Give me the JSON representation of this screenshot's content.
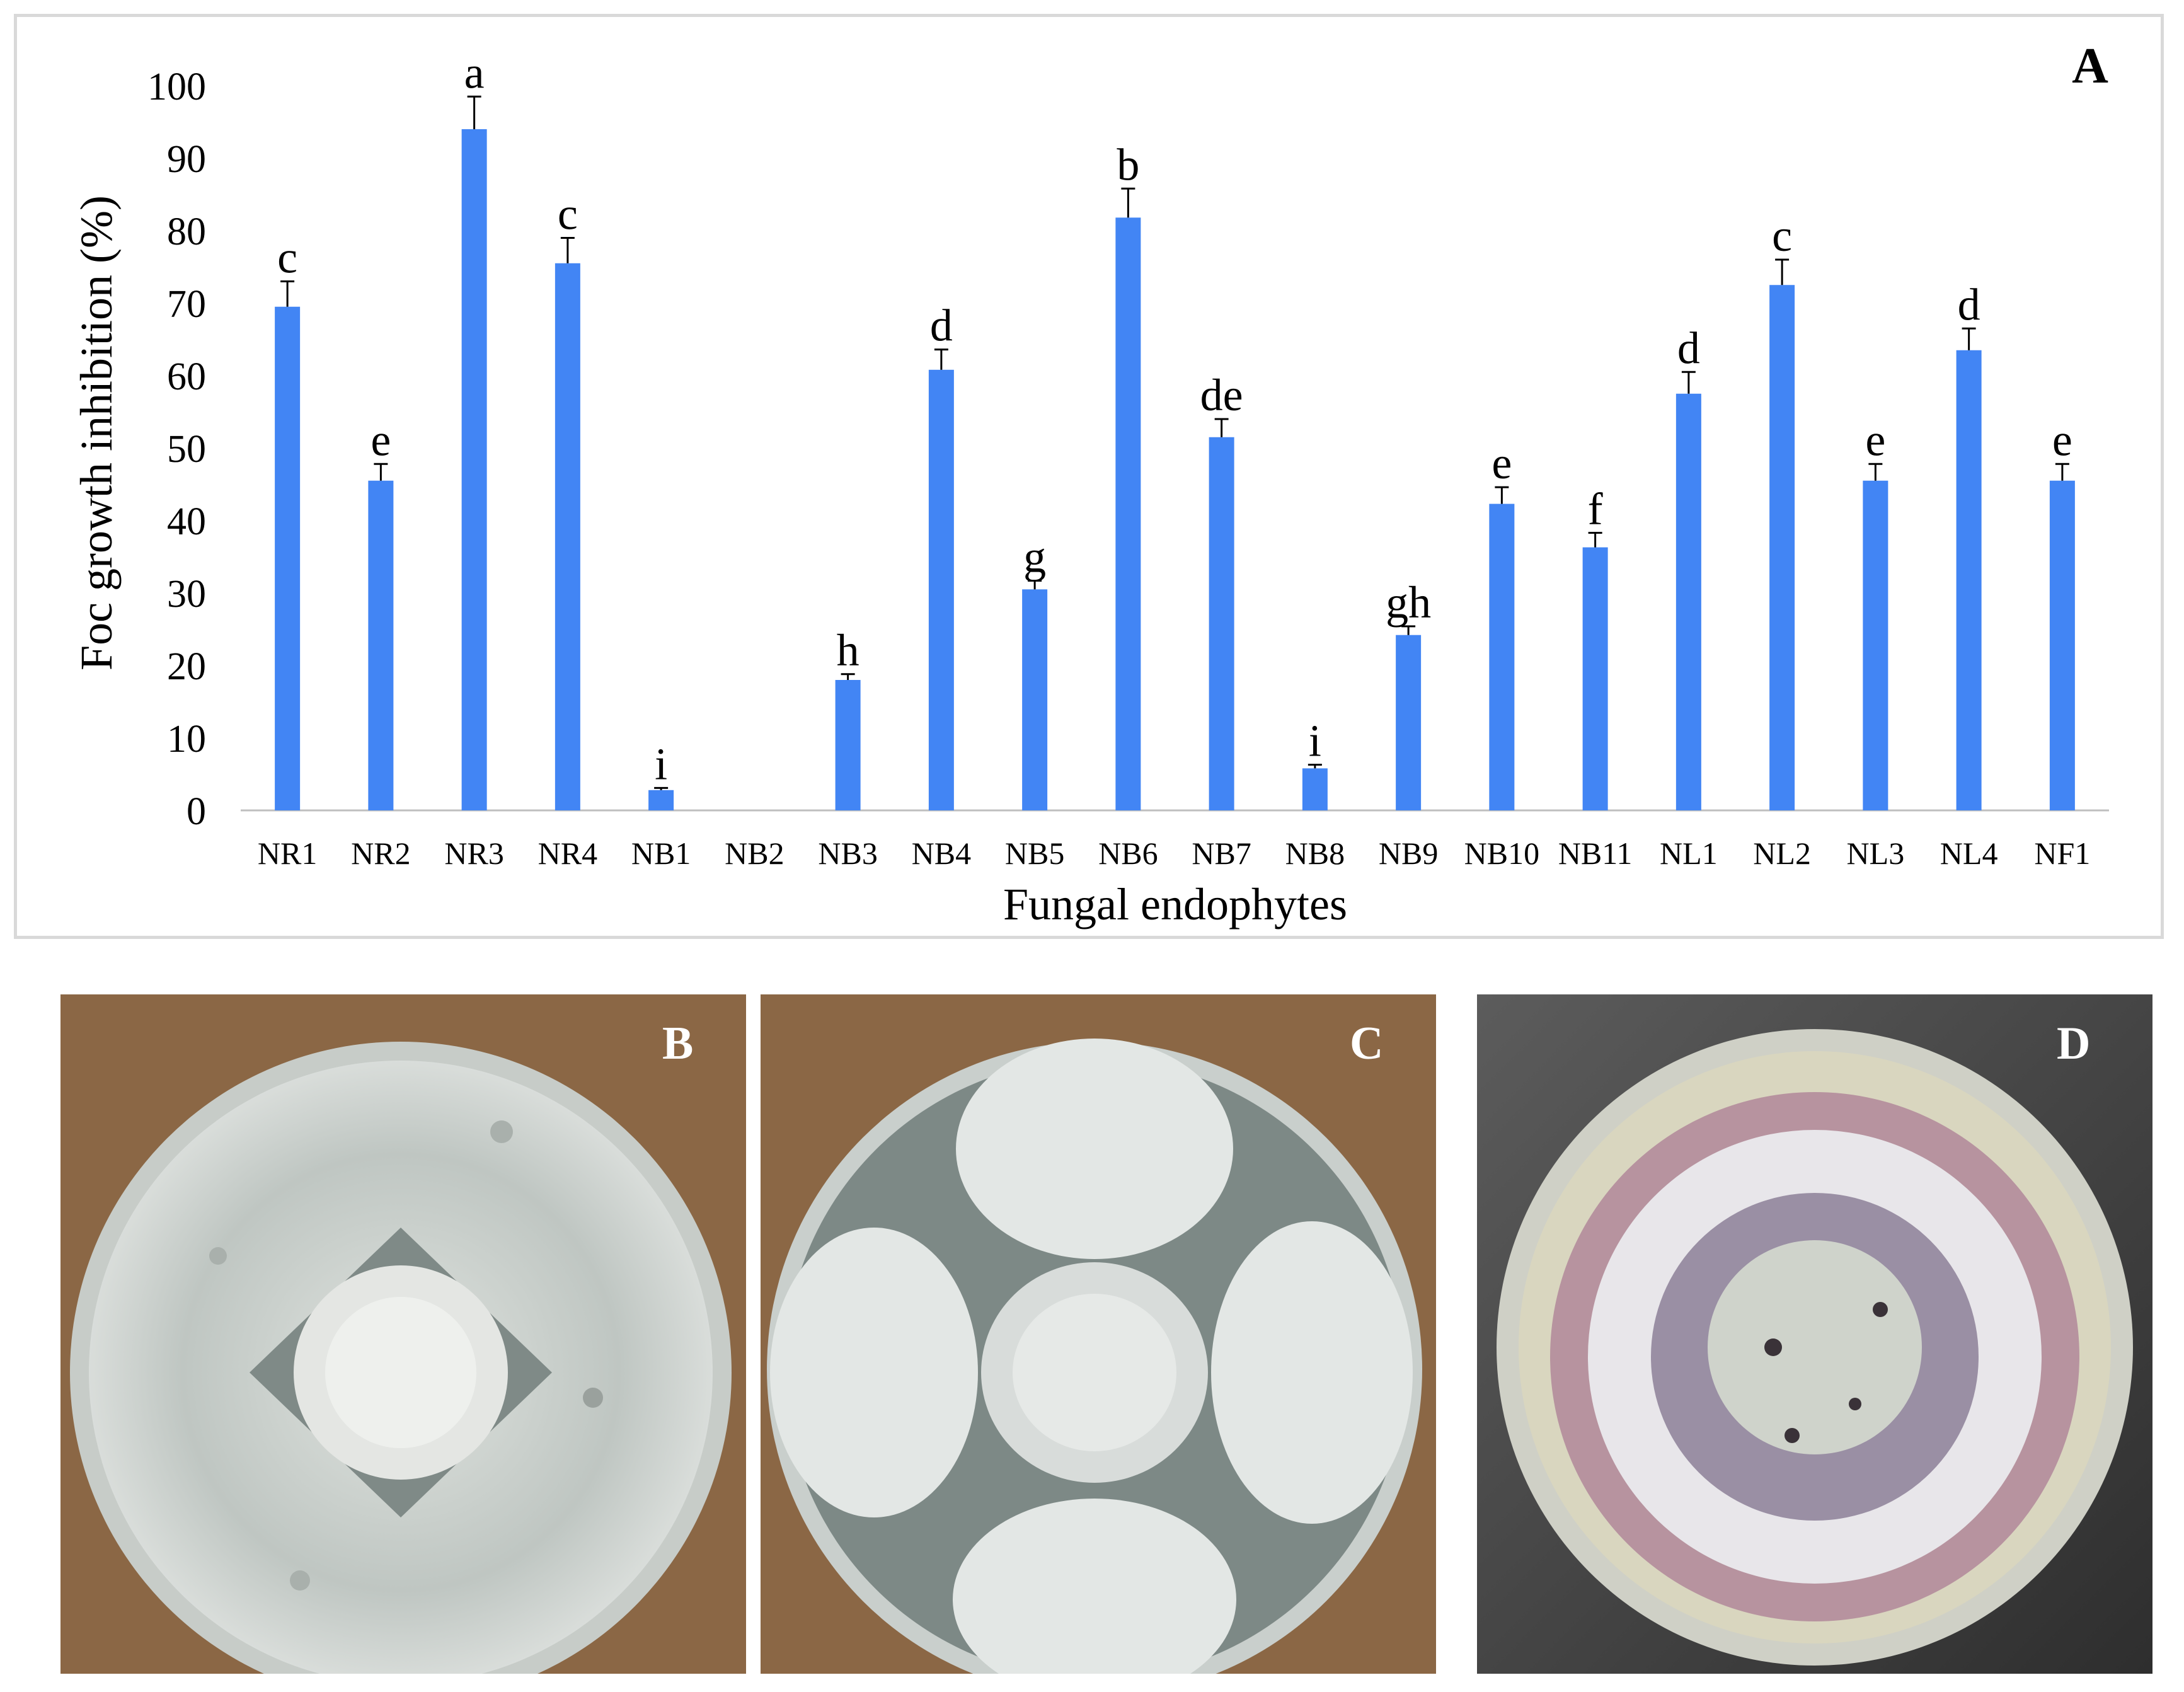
{
  "panel_labels": {
    "chart": "A",
    "photo_b": "B",
    "photo_c": "C",
    "photo_d": "D"
  },
  "chart_data": {
    "type": "bar",
    "xlabel": "Fungal endophytes",
    "ylabel": "Foc growth inhibition (%)",
    "ylim": [
      0,
      100
    ],
    "yticks": [
      0,
      10,
      20,
      30,
      40,
      50,
      60,
      70,
      80,
      90,
      100
    ],
    "grid": false,
    "bar_color": "#4285F4",
    "categories": [
      "NR1",
      "NR2",
      "NR3",
      "NR4",
      "NB1",
      "NB2",
      "NB3",
      "NB4",
      "NB5",
      "NB6",
      "NB7",
      "NB8",
      "NB9",
      "NB10",
      "NB11",
      "NL1",
      "NL2",
      "NL3",
      "NL4",
      "NF1"
    ],
    "values": [
      69.5,
      45.5,
      94,
      75.5,
      2.8,
      0,
      18,
      60.8,
      30.5,
      81.8,
      51.5,
      5.8,
      24.2,
      42.3,
      36.3,
      57.5,
      72.5,
      45.5,
      63.5,
      45.5
    ],
    "errors": [
      3.5,
      2.3,
      4.5,
      3.5,
      0.3,
      0,
      0.8,
      2.8,
      1.2,
      4.0,
      2.5,
      0.5,
      1.2,
      2.3,
      2.0,
      3.0,
      3.5,
      2.3,
      3.0,
      2.3
    ],
    "letters": [
      "c",
      "e",
      "a",
      "c",
      "i",
      "",
      "h",
      "d",
      "g",
      "b",
      "de",
      "i",
      "gh",
      "e",
      "f",
      "d",
      "c",
      "e",
      "d",
      "e"
    ]
  }
}
